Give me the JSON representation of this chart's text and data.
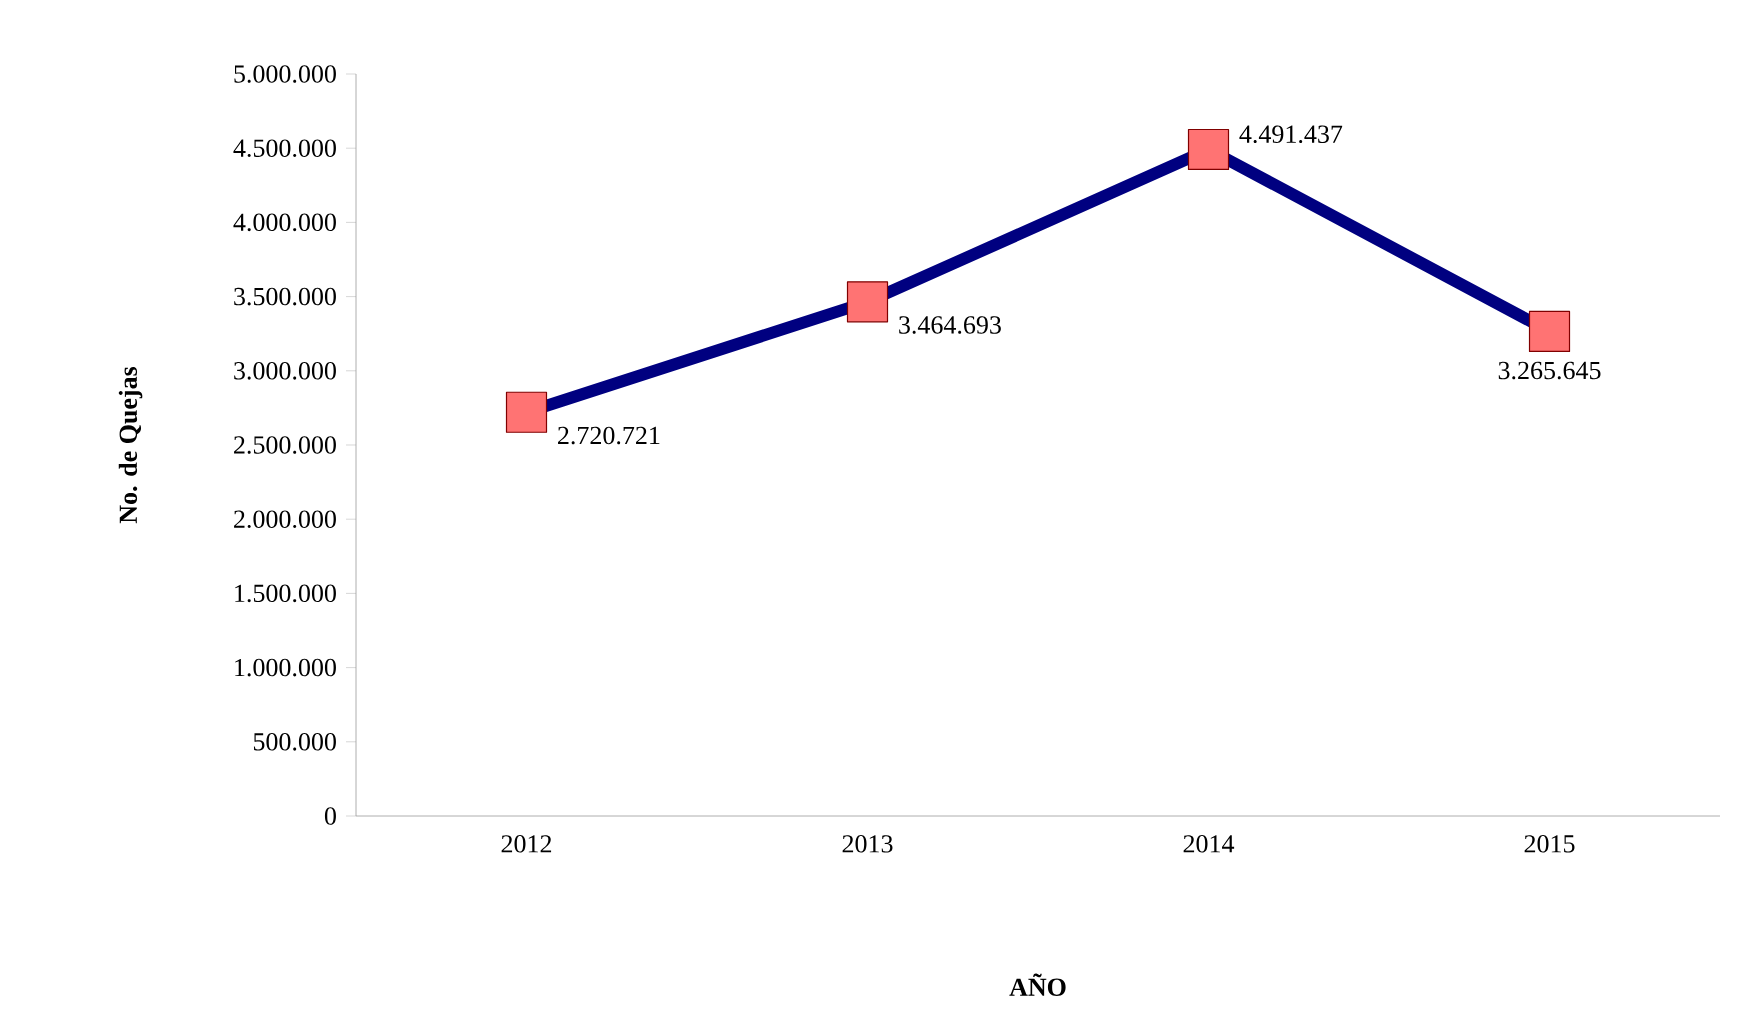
{
  "chart_data": {
    "type": "line",
    "xlabel": "AÑO",
    "ylabel": "No. de Quejas",
    "categories": [
      "2012",
      "2013",
      "2014",
      "2015"
    ],
    "series": [
      {
        "color": "#000080",
        "values": [
          2720721,
          3464693,
          4491437,
          3265645
        ],
        "value_labels": [
          "2.720.721",
          "3.464.693",
          "4.491.437",
          "3.265.645"
        ]
      }
    ],
    "ylim": [
      0,
      5000000
    ],
    "yticks": [
      {
        "value": 0,
        "label": "0"
      },
      {
        "value": 500000,
        "label": "500.000"
      },
      {
        "value": 1000000,
        "label": "1.000.000"
      },
      {
        "value": 1500000,
        "label": "1.500.000"
      },
      {
        "value": 2000000,
        "label": "2.000.000"
      },
      {
        "value": 2500000,
        "label": "2.500.000"
      },
      {
        "value": 3000000,
        "label": "3.000.000"
      },
      {
        "value": 3500000,
        "label": "3.500.000"
      },
      {
        "value": 4000000,
        "label": "4.000.000"
      },
      {
        "value": 4500000,
        "label": "4.500.000"
      },
      {
        "value": 5000000,
        "label": "5.000.000"
      }
    ],
    "marker": "square",
    "line_style": "solid"
  }
}
